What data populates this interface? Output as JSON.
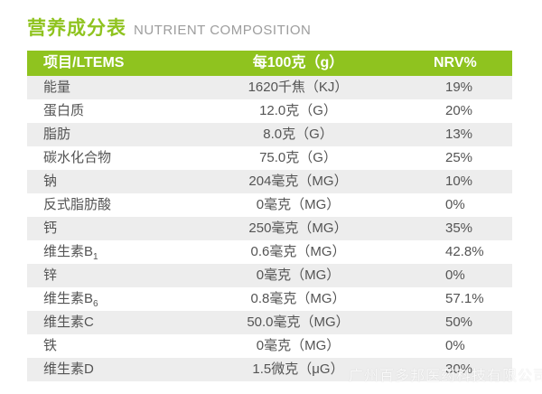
{
  "page": {
    "title_zh": "营养成分表",
    "title_en": "NUTRIENT COMPOSITION",
    "watermark": "广州百多邦医药科技有限公司"
  },
  "colors": {
    "accent_green": "#8FC31F",
    "row_alt": "#EDEDED",
    "text_main": "#545454",
    "header_text": "#FFFFFF",
    "title_en": "#9D9D9D"
  },
  "table": {
    "columns": [
      "项目/LTEMS",
      "每100克（g）",
      "NRV%"
    ],
    "rows": [
      {
        "item": "能量",
        "per100g": "1620千焦（KJ）",
        "nrv": "19%"
      },
      {
        "item": "蛋白质",
        "per100g": "12.0克（G）",
        "nrv": "20%"
      },
      {
        "item": "脂肪",
        "per100g": "8.0克（G）",
        "nrv": "13%"
      },
      {
        "item": "碳水化合物",
        "per100g": "75.0克（G）",
        "nrv": "25%"
      },
      {
        "item": "钠",
        "per100g": "204毫克（MG）",
        "nrv": "10%"
      },
      {
        "item": "反式脂肪酸",
        "per100g": "0毫克（MG）",
        "nrv": "0%"
      },
      {
        "item": "钙",
        "per100g": "250毫克（MG）",
        "nrv": "35%"
      },
      {
        "item": "维生素B",
        "item_sub": "1",
        "per100g": "0.6毫克（MG）",
        "nrv": "42.8%"
      },
      {
        "item": "锌",
        "per100g": "0毫克（MG）",
        "nrv": "0%"
      },
      {
        "item": "维生素B",
        "item_sub": "6",
        "per100g": "0.8毫克（MG）",
        "nrv": "57.1%"
      },
      {
        "item": "维生素C",
        "per100g": "50.0毫克（MG）",
        "nrv": "50%"
      },
      {
        "item": "铁",
        "per100g": "0毫克（MG）",
        "nrv": "0%"
      },
      {
        "item": "维生素D",
        "per100g": "1.5微克（μG）",
        "nrv": "30%"
      }
    ]
  }
}
